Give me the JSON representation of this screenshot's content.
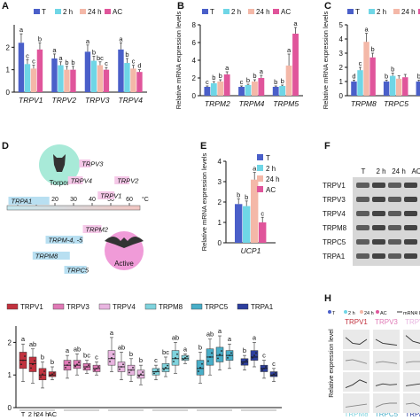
{
  "colors": {
    "T": "#4a5fc9",
    "h2": "#6fd6e6",
    "h24": "#f4b8a8",
    "AC": "#e0559b",
    "TRPV1": "#c2323f",
    "TRPV3": "#e07ab6",
    "TRPV4": "#e8b5e0",
    "TRPM8": "#7fd3dd",
    "TRPC5": "#49aec8",
    "TRPA1": "#2d3f9e"
  },
  "legend4": [
    "T",
    "2 h",
    "24 h",
    "AC"
  ],
  "panels": {
    "A": {
      "label": "A",
      "ticks": [
        "2",
        "1",
        "0"
      ],
      "genes": [
        "TRPV1",
        "TRPV2",
        "TRPV3",
        "TRPV4"
      ]
    },
    "B": {
      "label": "B",
      "ylabel": "Relative mRNA expression levels",
      "ticks": [
        "8",
        "6",
        "4",
        "2",
        "0"
      ],
      "genes": [
        "TRPM2",
        "TRPM4",
        "TRPM5"
      ]
    },
    "C": {
      "label": "C",
      "ylabel": "Relative mRNA expression levels",
      "ticks": [
        "5",
        "4",
        "3",
        "2",
        "1",
        "0"
      ],
      "genes": [
        "TRPM8",
        "TRPC5",
        "TR"
      ]
    },
    "D": {
      "label": "D",
      "torpor": "Torpor",
      "active": "Active",
      "scale_ticks": [
        "0",
        "10",
        "20",
        "30",
        "40",
        "50",
        "60",
        "°C"
      ]
    },
    "E": {
      "label": "E",
      "ylabel": "Relative mRNA expression levels",
      "ticks": [
        "4",
        "3",
        "2",
        "1",
        "0"
      ],
      "gene": "UCP1"
    },
    "F": {
      "label": "F",
      "cols": [
        "T",
        "2 h",
        "24 h",
        "AC"
      ],
      "rows": [
        "TRPV1",
        "TRPV3",
        "TRPV4",
        "TRPM8",
        "TRPC5",
        "TRPA1"
      ]
    },
    "G": {
      "legend": [
        "TRPV1",
        "TRPV3",
        "TRPV4",
        "TRPM8",
        "TRPC5",
        "TRPA1"
      ],
      "ticks": [
        "2",
        "1",
        "0"
      ],
      "xcats": [
        "T",
        "2 h",
        "24 h",
        "AC"
      ]
    },
    "H": {
      "label": "H",
      "legend": [
        "T",
        "2 h",
        "24 h",
        "AC",
        "mRNA",
        "Prot"
      ],
      "ylabel": "Relative expression level",
      "top": [
        "TRPV1",
        "TRPV3",
        "TRPV4"
      ],
      "bottom": [
        "TRPM8",
        "TRPC5",
        "TRPA1"
      ]
    }
  },
  "chart_data": [
    {
      "type": "bar",
      "panel": "A",
      "categories": [
        "TRPV1",
        "TRPV2",
        "TRPV3",
        "TRPV4"
      ],
      "series": [
        {
          "name": "T",
          "values": [
            2.2,
            1.5,
            1.8,
            1.9
          ],
          "err": [
            0.4,
            0.2,
            0.3,
            0.3
          ],
          "letters": [
            "a",
            "a",
            "a",
            "a"
          ]
        },
        {
          "name": "2 h",
          "values": [
            1.25,
            1.2,
            1.4,
            1.3
          ],
          "err": [
            0.2,
            0.15,
            0.2,
            0.2
          ],
          "letters": [
            "c",
            "a",
            "b",
            "b"
          ]
        },
        {
          "name": "24 h",
          "values": [
            1.05,
            1.0,
            1.2,
            1.05
          ],
          "err": [
            0.15,
            0.15,
            0.15,
            0.15
          ],
          "letters": [
            "c",
            "b",
            "bc",
            "c"
          ]
        },
        {
          "name": "AC",
          "values": [
            1.9,
            1.0,
            1.0,
            0.9
          ],
          "err": [
            0.3,
            0.15,
            0.1,
            0.1
          ],
          "letters": [
            "b",
            "b",
            "c",
            "d"
          ]
        }
      ],
      "ylim": [
        0,
        3
      ]
    },
    {
      "type": "bar",
      "panel": "B",
      "categories": [
        "TRPM2",
        "TRPM4",
        "TRPM5"
      ],
      "series": [
        {
          "name": "T",
          "values": [
            1.0,
            1.0,
            1.0
          ],
          "err": [
            0.1,
            0.1,
            0.1
          ],
          "letters": [
            "c",
            "c",
            "b"
          ]
        },
        {
          "name": "2 h",
          "values": [
            1.4,
            1.2,
            1.1
          ],
          "err": [
            0.2,
            0.1,
            0.1
          ],
          "letters": [
            "b",
            "b",
            "b"
          ]
        },
        {
          "name": "24 h",
          "values": [
            1.6,
            1.6,
            3.4
          ],
          "err": [
            0.2,
            0.2,
            1.3
          ],
          "letters": [
            "b",
            "b",
            "a"
          ]
        },
        {
          "name": "AC",
          "values": [
            2.4,
            2.0,
            7.0
          ],
          "err": [
            0.3,
            0.3,
            0.7
          ],
          "letters": [
            "a",
            "a",
            "a"
          ]
        }
      ],
      "ylim": [
        0,
        8
      ]
    },
    {
      "type": "bar",
      "panel": "C",
      "categories": [
        "TRPM8",
        "TRPC5",
        "TR"
      ],
      "series": [
        {
          "name": "T",
          "values": [
            1.0,
            1.0,
            1.0
          ],
          "err": [
            0.1,
            0.1,
            0.1
          ],
          "letters": [
            "d",
            "b",
            "b"
          ]
        },
        {
          "name": "2 h",
          "values": [
            1.8,
            1.4,
            1.4
          ],
          "err": [
            0.2,
            0.2,
            0.2
          ],
          "letters": [
            "c",
            "b",
            "b"
          ]
        },
        {
          "name": "24 h",
          "values": [
            3.8,
            1.2,
            1.3
          ],
          "err": [
            0.6,
            0.2,
            0.2
          ],
          "letters": [
            "a",
            "",
            ""
          ]
        },
        {
          "name": "AC",
          "values": [
            2.7,
            1.3,
            2.4
          ],
          "err": [
            0.3,
            0.2,
            0.3
          ],
          "letters": [
            "b",
            "",
            ""
          ]
        }
      ],
      "ylim": [
        0,
        5
      ]
    },
    {
      "type": "bar",
      "panel": "E",
      "categories": [
        "UCP1"
      ],
      "series": [
        {
          "name": "T",
          "values": [
            1.9
          ],
          "err": [
            0.25
          ],
          "letters": [
            "b"
          ]
        },
        {
          "name": "2 h",
          "values": [
            1.8
          ],
          "err": [
            0.25
          ],
          "letters": [
            "b"
          ]
        },
        {
          "name": "24 h",
          "values": [
            3.1
          ],
          "err": [
            0.35
          ],
          "letters": [
            "a"
          ]
        },
        {
          "name": "AC",
          "values": [
            1.0
          ],
          "err": [
            0.25
          ],
          "letters": [
            "c"
          ]
        }
      ],
      "ylim": [
        0,
        4
      ]
    },
    {
      "type": "range",
      "panel": "D",
      "xlim": [
        0,
        60
      ],
      "items": [
        {
          "name": "TRPV3",
          "from": 33,
          "to": 39,
          "row": 0
        },
        {
          "name": "TRPV4",
          "from": 27,
          "to": 35,
          "row": 1
        },
        {
          "name": "TRPV2",
          "from": 52,
          "to": 60,
          "row": 1
        },
        {
          "name": "TRPV1",
          "from": 43,
          "to": 52,
          "row": 2
        },
        {
          "name": "TRPA1",
          "from": -5,
          "to": 17,
          "row": 3
        },
        {
          "name": "TRPM2",
          "from": 35,
          "to": 45,
          "row": 4
        },
        {
          "name": "TRPM-4, -5",
          "from": 15,
          "to": 35,
          "row": 5
        },
        {
          "name": "TRPM8",
          "from": 8,
          "to": 28,
          "row": 6
        },
        {
          "name": "TRPC5",
          "from": 25,
          "to": 37,
          "row": 7
        }
      ]
    },
    {
      "type": "box",
      "panel": "G",
      "ylim": [
        0,
        2.5
      ],
      "groups": [
        {
          "name": "TRPV1",
          "boxes": [
            [
              0.8,
              1.2,
              1.45,
              1.7,
              1.95
            ],
            [
              0.75,
              1.1,
              1.35,
              1.55,
              1.8
            ],
            [
              0.6,
              0.85,
              1.0,
              1.2,
              1.4
            ],
            [
              0.85,
              0.95,
              1.0,
              1.1,
              1.25
            ]
          ],
          "letters": [
            "a",
            "ab",
            "b",
            "b"
          ]
        },
        {
          "name": "TRPV3",
          "boxes": [
            [
              0.9,
              1.15,
              1.3,
              1.45,
              1.6
            ],
            [
              1.0,
              1.2,
              1.3,
              1.45,
              1.65
            ],
            [
              1.05,
              1.15,
              1.25,
              1.35,
              1.45
            ],
            [
              1.0,
              1.1,
              1.2,
              1.3,
              1.4
            ]
          ],
          "letters": [
            "a",
            "ab",
            "bc",
            "c"
          ]
        },
        {
          "name": "TRPV4",
          "boxes": [
            [
              1.1,
              1.3,
              1.5,
              1.75,
              2.15
            ],
            [
              0.85,
              1.1,
              1.25,
              1.4,
              1.7
            ],
            [
              0.8,
              1.0,
              1.15,
              1.3,
              1.5
            ],
            [
              0.7,
              0.9,
              1.0,
              1.15,
              1.3
            ]
          ],
          "letters": [
            "a",
            "ab",
            "b",
            "b"
          ]
        },
        {
          "name": "TRPM8",
          "boxes": [
            [
              0.85,
              1.0,
              1.1,
              1.2,
              1.3
            ],
            [
              0.95,
              1.1,
              1.2,
              1.35,
              1.55
            ],
            [
              1.05,
              1.3,
              1.5,
              1.75,
              2.0
            ],
            [
              1.35,
              1.45,
              1.5,
              1.6,
              1.65
            ]
          ],
          "letters": [
            "c",
            "bc",
            "ab",
            "a"
          ]
        },
        {
          "name": "TRPC5",
          "boxes": [
            [
              0.75,
              1.0,
              1.2,
              1.45,
              1.7
            ],
            [
              1.0,
              1.3,
              1.55,
              1.8,
              2.1
            ],
            [
              1.15,
              1.4,
              1.6,
              1.85,
              2.2
            ],
            [
              1.2,
              1.45,
              1.6,
              1.75,
              1.95
            ]
          ],
          "letters": [
            "b",
            "ab",
            "a",
            "a"
          ]
        },
        {
          "name": "TRPA1",
          "boxes": [
            [
              1.15,
              1.3,
              1.4,
              1.5,
              1.6
            ],
            [
              1.25,
              1.45,
              1.55,
              1.75,
              2.0
            ],
            [
              0.9,
              1.1,
              1.2,
              1.3,
              1.45
            ],
            [
              0.8,
              0.95,
              1.0,
              1.1,
              1.2
            ]
          ],
          "letters": [
            "b",
            "a",
            "c",
            "c"
          ]
        }
      ]
    },
    {
      "type": "line",
      "panel": "H",
      "cells": [
        {
          "name": "TRPV1",
          "mrna": [
            0.6,
            0.3,
            0.25,
            0.5
          ],
          "prot": [
            0.5,
            0.55,
            0.45,
            0.35
          ]
        },
        {
          "name": "TRPV3",
          "mrna": [
            0.5,
            0.3,
            0.25,
            0.2
          ],
          "prot": [
            0.4,
            0.45,
            0.4,
            0.35
          ]
        },
        {
          "name": "TRPV4",
          "mrna": [
            0.7,
            0.4,
            0.3,
            0.25
          ],
          "prot": [
            0.4,
            0.45,
            0.45,
            0.4
          ]
        },
        {
          "name": "TRPM8",
          "mrna": [
            0.2,
            0.35,
            0.6,
            0.45
          ],
          "prot": [
            0.3,
            0.35,
            0.4,
            0.45
          ]
        },
        {
          "name": "TRPC5",
          "mrna": [
            0.3,
            0.4,
            0.35,
            0.38
          ],
          "prot": [
            0.3,
            0.45,
            0.5,
            0.5
          ]
        },
        {
          "name": "TRPA1",
          "mrna": [
            0.3,
            0.35,
            0.4,
            0.5
          ],
          "prot": [
            0.45,
            0.5,
            0.35,
            0.3
          ]
        }
      ]
    }
  ]
}
